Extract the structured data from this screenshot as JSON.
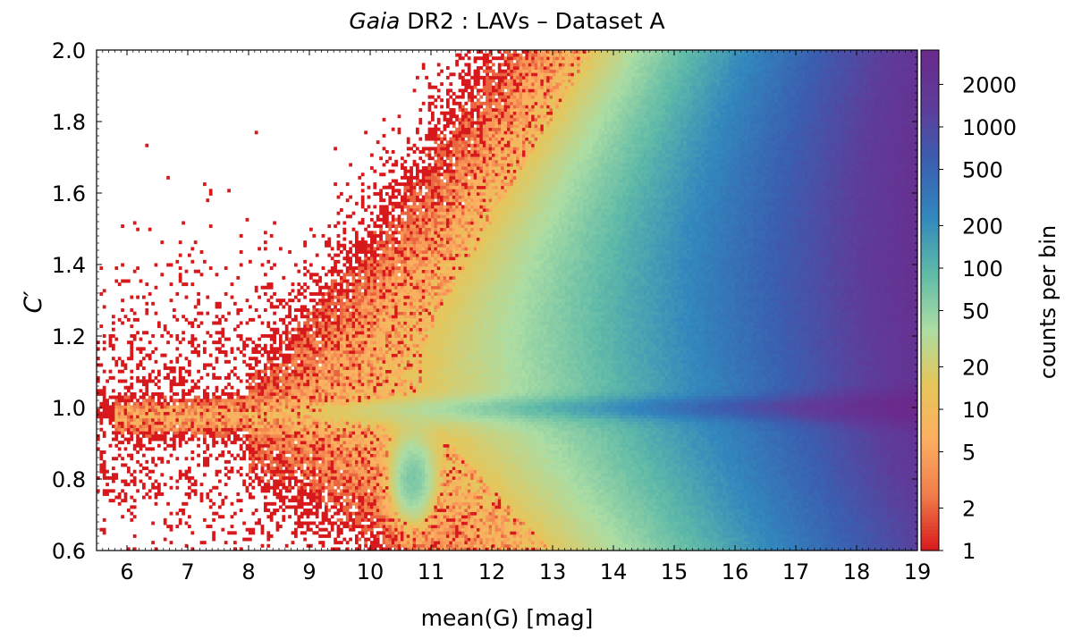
{
  "chart_data": {
    "type": "heatmap",
    "title_italic": "Gaia",
    "title_rest": " DR2 : LAVs  –  Dataset A",
    "xlabel": "mean(G)  [mag]",
    "ylabel": "C′",
    "xlim": [
      5.5,
      19
    ],
    "ylim": [
      0.6,
      2.0
    ],
    "x_ticks": [
      6,
      7,
      8,
      9,
      10,
      11,
      12,
      13,
      14,
      15,
      16,
      17,
      18,
      19
    ],
    "y_ticks": [
      0.6,
      0.8,
      1.0,
      1.2,
      1.4,
      1.6,
      1.8,
      2.0
    ],
    "y_tick_labels": [
      "0.6",
      "0.8",
      "1.0",
      "1.2",
      "1.4",
      "1.6",
      "1.8",
      "2.0"
    ],
    "colorbar": {
      "label": "counts per bin",
      "scale": "log",
      "range": [
        1,
        3500
      ],
      "ticks": [
        1,
        2,
        5,
        10,
        20,
        50,
        100,
        200,
        500,
        1000,
        2000
      ],
      "colormap": [
        "#d7191c",
        "#f07c4a",
        "#fdae61",
        "#e6c65a",
        "#abdda4",
        "#5fbaa8",
        "#3288bd",
        "#3a5fb0",
        "#5e3c99",
        "#6a2a8c"
      ]
    },
    "features": [
      {
        "name": "main sequence band",
        "y_center": 1.0,
        "x_range": [
          5.5,
          19
        ]
      },
      {
        "name": "dip near G=10.7",
        "x": 10.7,
        "y_min": 0.6
      },
      {
        "name": "dense region",
        "x_range": [
          16,
          19
        ],
        "peak_counts": 2500
      }
    ]
  }
}
